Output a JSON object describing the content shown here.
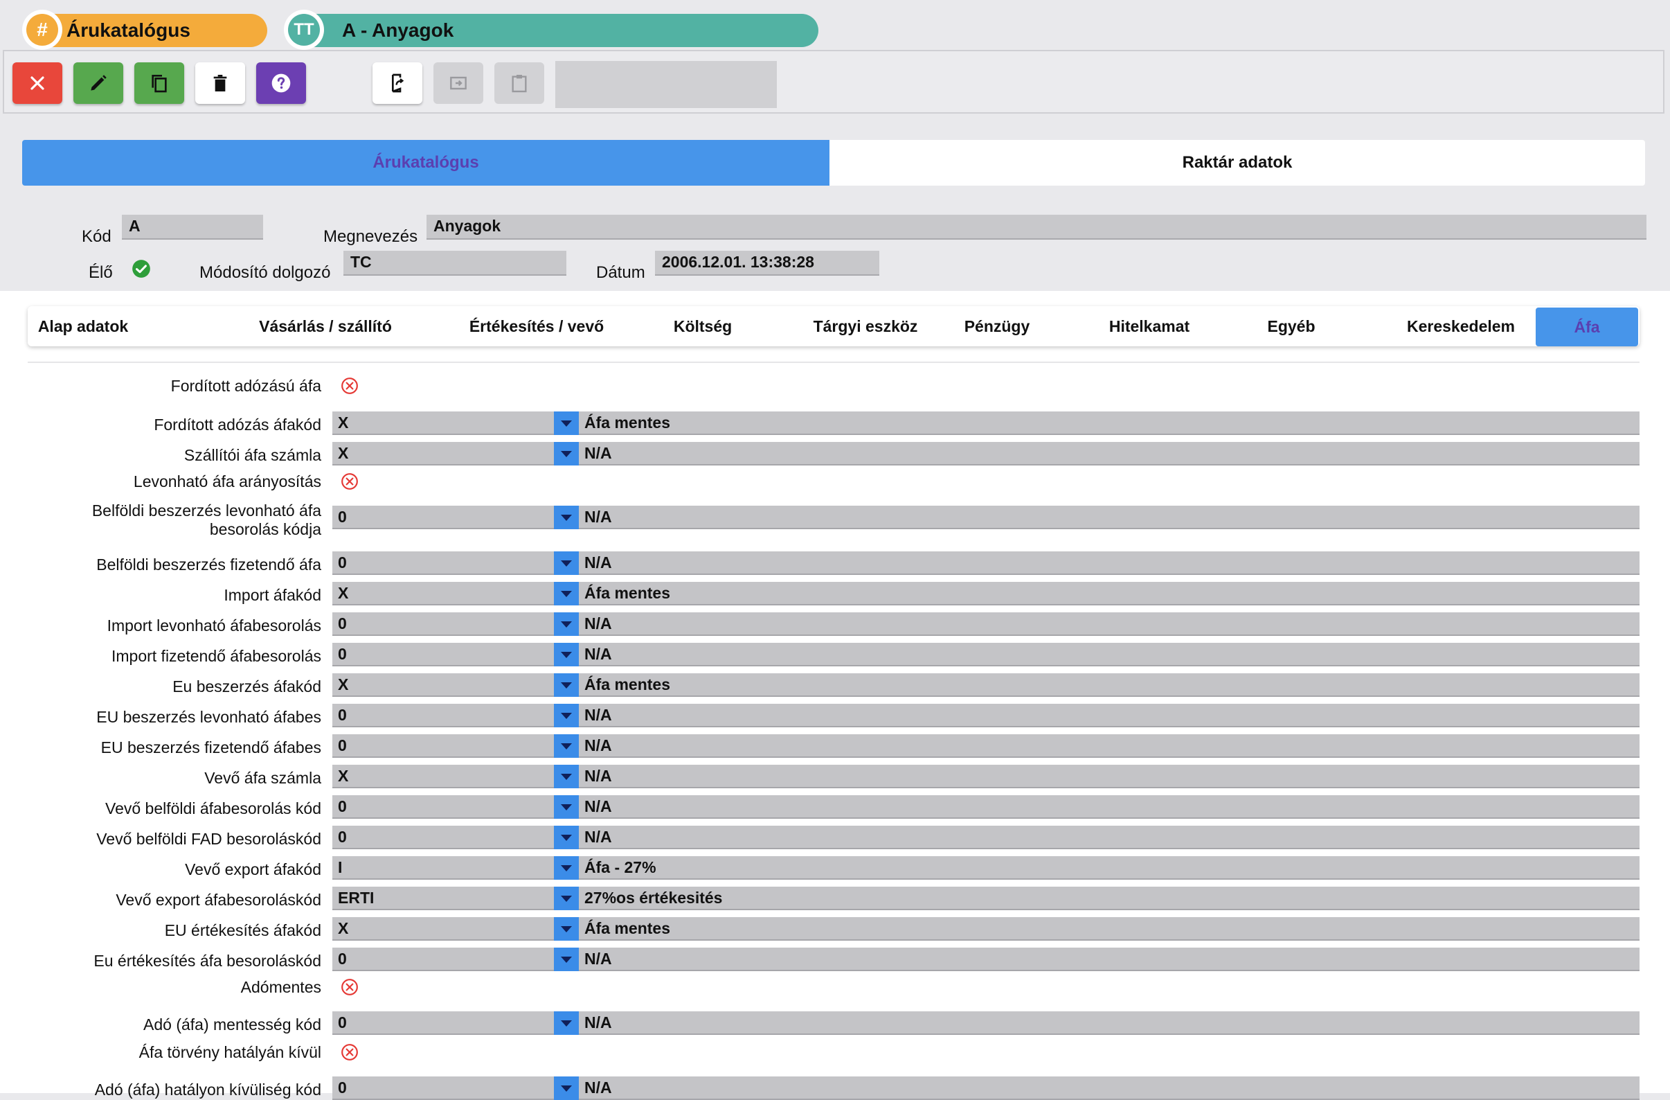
{
  "header": {
    "pill1": {
      "icon": "#",
      "label": "Árukatalógus"
    },
    "pill2": {
      "icon": "TT",
      "label": "A - Anyagok"
    }
  },
  "main_tabs": [
    {
      "label": "Árukatalógus",
      "active": true
    },
    {
      "label": "Raktár adatok",
      "active": false
    }
  ],
  "fields": {
    "kod_label": "Kód",
    "kod_value": "A",
    "megnevezes_label": "Megnevezés",
    "megnevezes_value": "Anyagok",
    "elo_label": "Élő",
    "modosito_label": "Módosító dolgozó",
    "modosito_value": "TC",
    "datum_label": "Dátum",
    "datum_value": "2006.12.01. 13:38:28"
  },
  "sub_tabs": [
    {
      "label": "Alap adatok"
    },
    {
      "label": "Vásárlás / szállító"
    },
    {
      "label": "Értékesítés / vevő"
    },
    {
      "label": "Költség"
    },
    {
      "label": "Tárgyi eszköz"
    },
    {
      "label": "Pénzügy"
    },
    {
      "label": "Hitelkamat"
    },
    {
      "label": "Egyéb"
    },
    {
      "label": "Kereskedelem"
    },
    {
      "label": "Áfa",
      "active": true
    }
  ],
  "rows": [
    {
      "label": "Fordított adózású áfa",
      "type": "check"
    },
    {
      "label": "Fordított adózás áfakód",
      "type": "select",
      "value": "X",
      "desc": "Áfa mentes"
    },
    {
      "label": "Szállítói áfa számla",
      "type": "select",
      "value": "X",
      "desc": "N/A"
    },
    {
      "label": "Levonható áfa arányosítás",
      "type": "check"
    },
    {
      "label": "Belföldi beszerzés levonható áfa",
      "label2": "besorolás kódja",
      "type": "select",
      "value": "0",
      "desc": "N/A"
    },
    {
      "label": "Belföldi beszerzés fizetendő áfa",
      "type": "select",
      "value": "0",
      "desc": "N/A"
    },
    {
      "label": "Import áfakód",
      "type": "select",
      "value": "X",
      "desc": "Áfa mentes"
    },
    {
      "label": "Import levonható áfabesorolás",
      "type": "select",
      "value": "0",
      "desc": "N/A"
    },
    {
      "label": "Import fizetendő áfabesorolás",
      "type": "select",
      "value": "0",
      "desc": "N/A"
    },
    {
      "label": "Eu beszerzés áfakód",
      "type": "select",
      "value": "X",
      "desc": "Áfa mentes"
    },
    {
      "label": "EU beszerzés levonható áfabes",
      "type": "select",
      "value": "0",
      "desc": "N/A"
    },
    {
      "label": "EU beszerzés fizetendő áfabes",
      "type": "select",
      "value": "0",
      "desc": "N/A"
    },
    {
      "label": "Vevő áfa számla",
      "type": "select",
      "value": "X",
      "desc": "N/A"
    },
    {
      "label": "Vevő belföldi áfabesorolás kód",
      "type": "select",
      "value": "0",
      "desc": "N/A"
    },
    {
      "label": "Vevő belföldi FAD besoroláskód",
      "type": "select",
      "value": "0",
      "desc": "N/A"
    },
    {
      "label": "Vevő export áfakód",
      "type": "select",
      "value": "I",
      "desc": "Áfa - 27%"
    },
    {
      "label": "Vevő export áfabesoroláskód",
      "type": "select",
      "value": "ERTI",
      "desc": "27%os értékesités"
    },
    {
      "label": "EU értékesítés áfakód",
      "type": "select",
      "value": "X",
      "desc": "Áfa mentes"
    },
    {
      "label": "Eu értékesítés áfa besoroláskód",
      "type": "select",
      "value": "0",
      "desc": "N/A"
    },
    {
      "label": "Adómentes",
      "type": "check"
    },
    {
      "label": "Adó (áfa) mentesség kód",
      "type": "select",
      "value": "0",
      "desc": "N/A"
    },
    {
      "label": "Áfa törvény hatályán kívül",
      "type": "check"
    },
    {
      "label": "Adó (áfa) hatályon kívüliség kód",
      "type": "select",
      "value": "0",
      "desc": "N/A"
    }
  ],
  "colors": {
    "accent_blue": "#4795ea",
    "active_tab_text": "#5b3fb0",
    "check_green": "#2e9e3a",
    "x_red": "#e53935"
  }
}
